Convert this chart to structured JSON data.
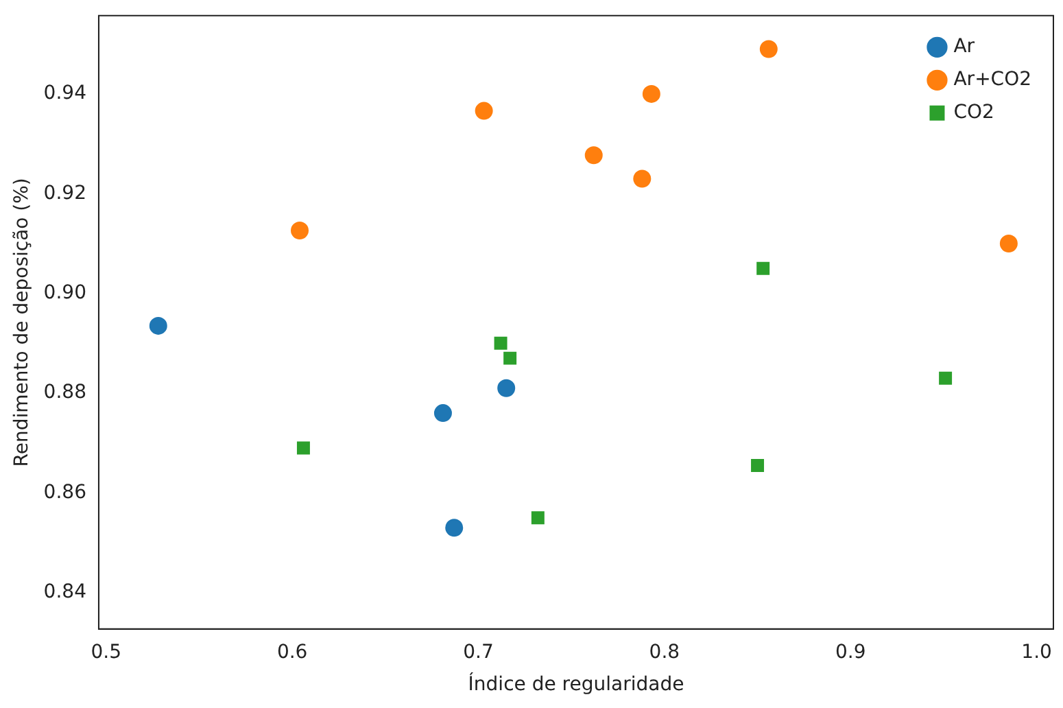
{
  "chart_data": {
    "type": "scatter",
    "xlabel": "Índice de regularidade",
    "ylabel": "Rendimento de deposição (%)",
    "xlim": [
      0.496,
      1.009
    ],
    "ylim": [
      0.8327,
      0.9557
    ],
    "xticks": [
      0.5,
      0.6,
      0.7,
      0.8,
      0.9,
      {
        "value": 1,
        "label": "1.0"
      }
    ],
    "yticks": [
      0.84,
      0.86,
      0.88,
      {
        "value": 0.9,
        "label": "0.90"
      },
      0.92,
      0.94
    ],
    "grid": false,
    "legend": "top right",
    "series": [
      {
        "name": "Ar",
        "color": "#1f77b4",
        "marker": "circle",
        "x": [
          0.528,
          0.681,
          0.715,
          0.687
        ],
        "values": [
          0.8935,
          0.876,
          0.881,
          0.853
        ]
      },
      {
        "name": "Ar+CO2",
        "color": "#ff7f0e",
        "x": [
          0.604,
          0.703,
          0.762,
          0.793,
          0.788,
          0.856,
          0.985
        ],
        "values": [
          0.9126,
          0.9366,
          0.9277,
          0.94,
          0.923,
          0.949,
          0.91
        ]
      },
      {
        "name": "CO2",
        "color": "#2ca02c",
        "marker": "square",
        "x": [
          0.606,
          0.712,
          0.717,
          0.732,
          0.85,
          0.853,
          0.951
        ],
        "values": [
          0.869,
          0.89,
          0.887,
          0.855,
          0.8655,
          0.905,
          0.883
        ]
      }
    ]
  }
}
